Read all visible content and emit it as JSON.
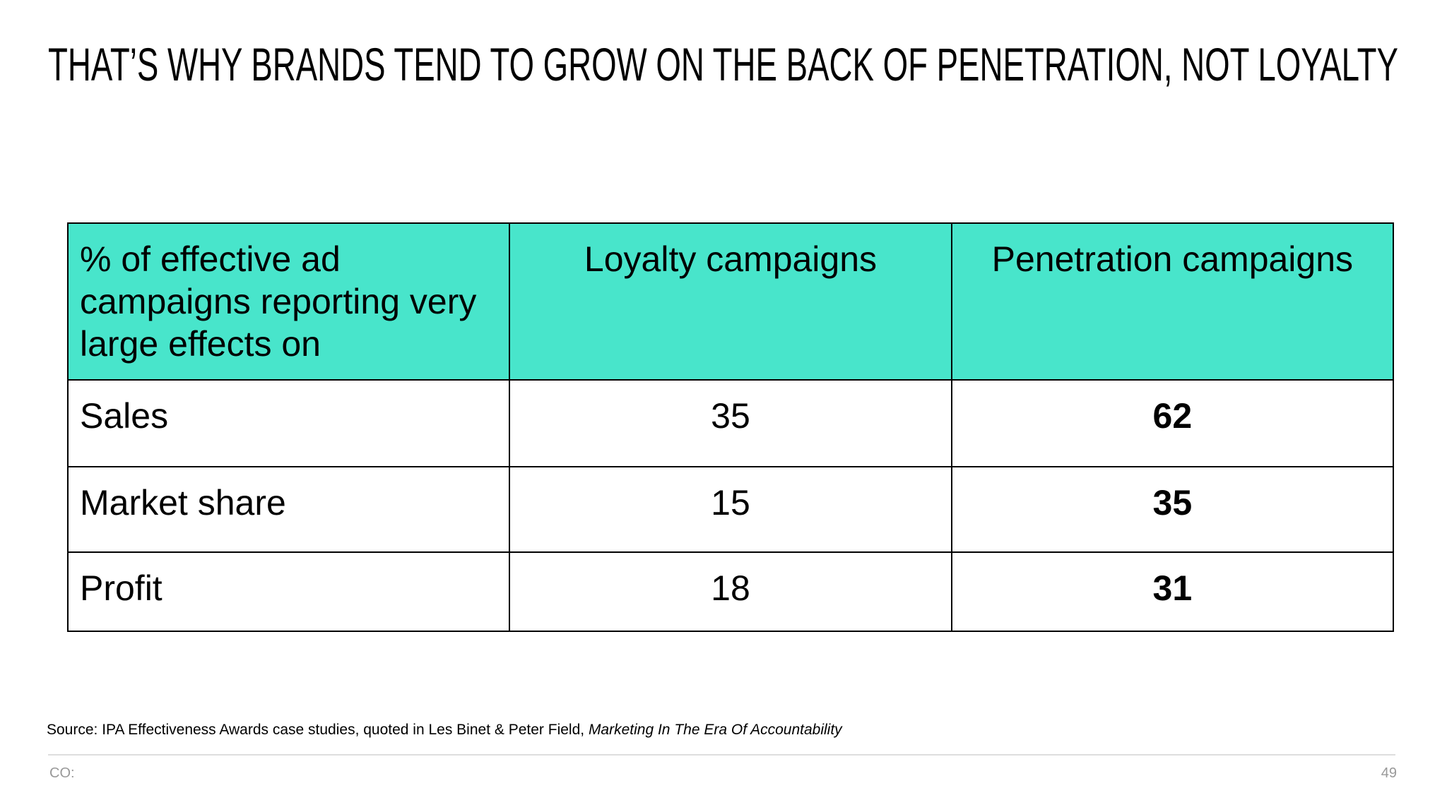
{
  "header": {
    "title": "THAT’S WHY BRANDS TEND TO GROW ON THE BACK OF PENETRATION, NOT LOYALTY"
  },
  "table": {
    "columns": [
      "% of effective ad campaigns reporting very large effects on",
      "Loyalty campaigns",
      "Penetration campaigns"
    ],
    "rows": [
      [
        "Sales",
        35,
        62
      ],
      [
        "Market share",
        15,
        35
      ],
      [
        "Profit",
        18,
        31
      ]
    ]
  },
  "source": {
    "text": "Source: IPA Effectiveness Awards case studies, quoted in Les Binet & Peter Field, ",
    "italic": "Marketing In The Era Of Accountability"
  },
  "footer": {
    "left": "CO:",
    "page": "49"
  }
}
